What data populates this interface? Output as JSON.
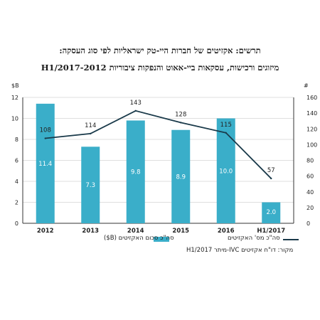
{
  "titles": {
    "line1": "תרשים: אקזיטים של חברות היי-טק ישראליות לפי סוג העסקה:",
    "line2": "מיזוגים ורכישות, עסקאות ביי-אאוט והנפקות ציבוריות 2012-H1/2017"
  },
  "legend": {
    "bars": "סה\"כ סכום האקזיטים (B$)",
    "line": "סה\"כ מס' האקזיטים"
  },
  "source": "מקור: דו\"ח אקזיטים IVC-מיתר H1/2017",
  "colors": {
    "bar": "#3aaec9",
    "line": "#1a3a4a",
    "grid": "#d4d4d4"
  },
  "chart_data": {
    "type": "bar",
    "categories": [
      "2012",
      "2013",
      "2014",
      "2015",
      "2016",
      "H1/2017"
    ],
    "series": [
      {
        "name": "סה\"כ סכום האקזיטים (B$)",
        "type": "bar",
        "axis": "left",
        "values": [
          11.4,
          7.3,
          9.8,
          8.9,
          10.0,
          2.0
        ]
      },
      {
        "name": "סה\"כ מס' האקזיטים",
        "type": "line",
        "axis": "right",
        "values": [
          108,
          114,
          143,
          128,
          115,
          57
        ]
      }
    ],
    "bar_labels": [
      "11.4",
      "7.3",
      "9.8",
      "8.9",
      "10.0",
      "2.0"
    ],
    "left_axis": {
      "label": "$B",
      "ylim": [
        0,
        12
      ],
      "ticks": [
        "0",
        "2",
        "4",
        "6",
        "8",
        "10",
        "12"
      ]
    },
    "right_axis": {
      "label": "#",
      "ylim": [
        0,
        160
      ],
      "ticks": [
        "0",
        "20",
        "40",
        "60",
        "80",
        "100",
        "120",
        "140",
        "160"
      ]
    },
    "grid": true
  }
}
